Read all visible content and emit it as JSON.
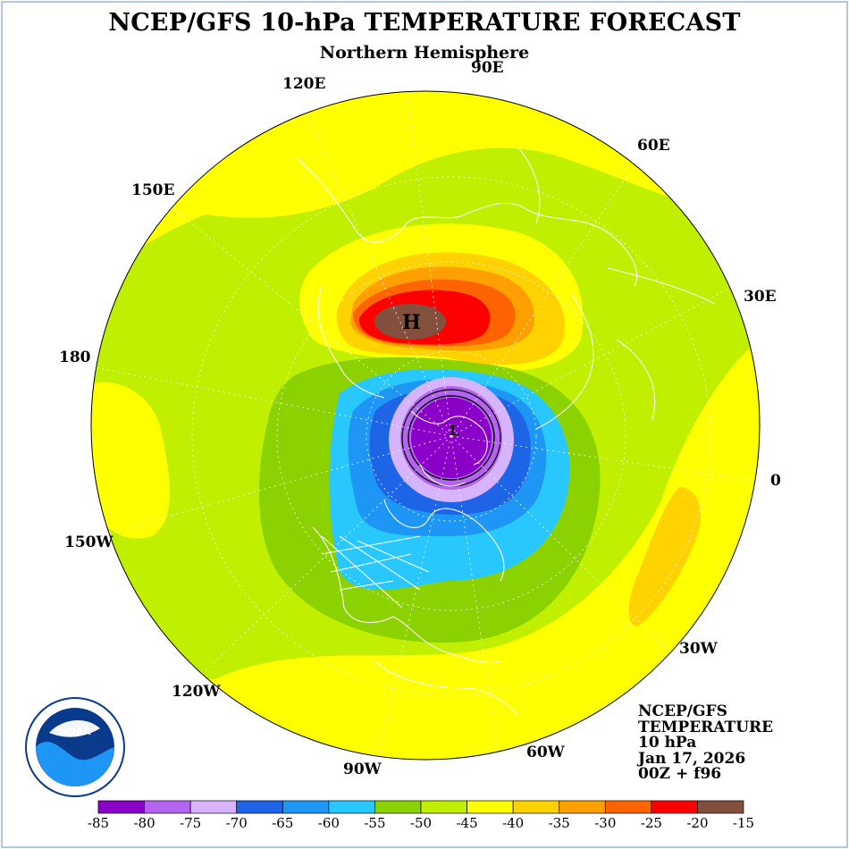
{
  "title": "NCEP/GFS 10-hPa TEMPERATURE FORECAST",
  "subtitle": "Northern Hemisphere",
  "longitude_labels": {
    "lon_120e": "120E",
    "lon_90e": "90E",
    "lon_60e": "60E",
    "lon_150e": "150E",
    "lon_30e": "30E",
    "lon_180": "180",
    "lon_0": "0",
    "lon_150w": "150W",
    "lon_30w": "30W",
    "lon_120w": "120W",
    "lon_90w": "90W",
    "lon_60w": "60W"
  },
  "info": {
    "model": "NCEP/GFS",
    "field": "TEMPERATURE",
    "level": "10 hPa",
    "date": "Jan 17, 2026",
    "run": "00Z + f96"
  },
  "highs_lows": {
    "high": "H",
    "low": "L"
  },
  "legend": {
    "ticks": [
      "-85",
      "-80",
      "-75",
      "-70",
      "-65",
      "-60",
      "-55",
      "-50",
      "-45",
      "-40",
      "-35",
      "-30",
      "-25",
      "-20",
      "-15"
    ],
    "colors": [
      "#8b00c8",
      "#b464f0",
      "#d7b4ff",
      "#1e64e6",
      "#1e96f5",
      "#28c8ff",
      "#8cd200",
      "#c0f000",
      "#ffff00",
      "#ffd200",
      "#ffa000",
      "#ff6400",
      "#ff0000",
      "#82503c",
      "#828282"
    ]
  },
  "logo_text": "NOAA",
  "colors": {
    "background": "#ffffff",
    "coastline": "#ffffff",
    "frame": "#96b4dc"
  }
}
